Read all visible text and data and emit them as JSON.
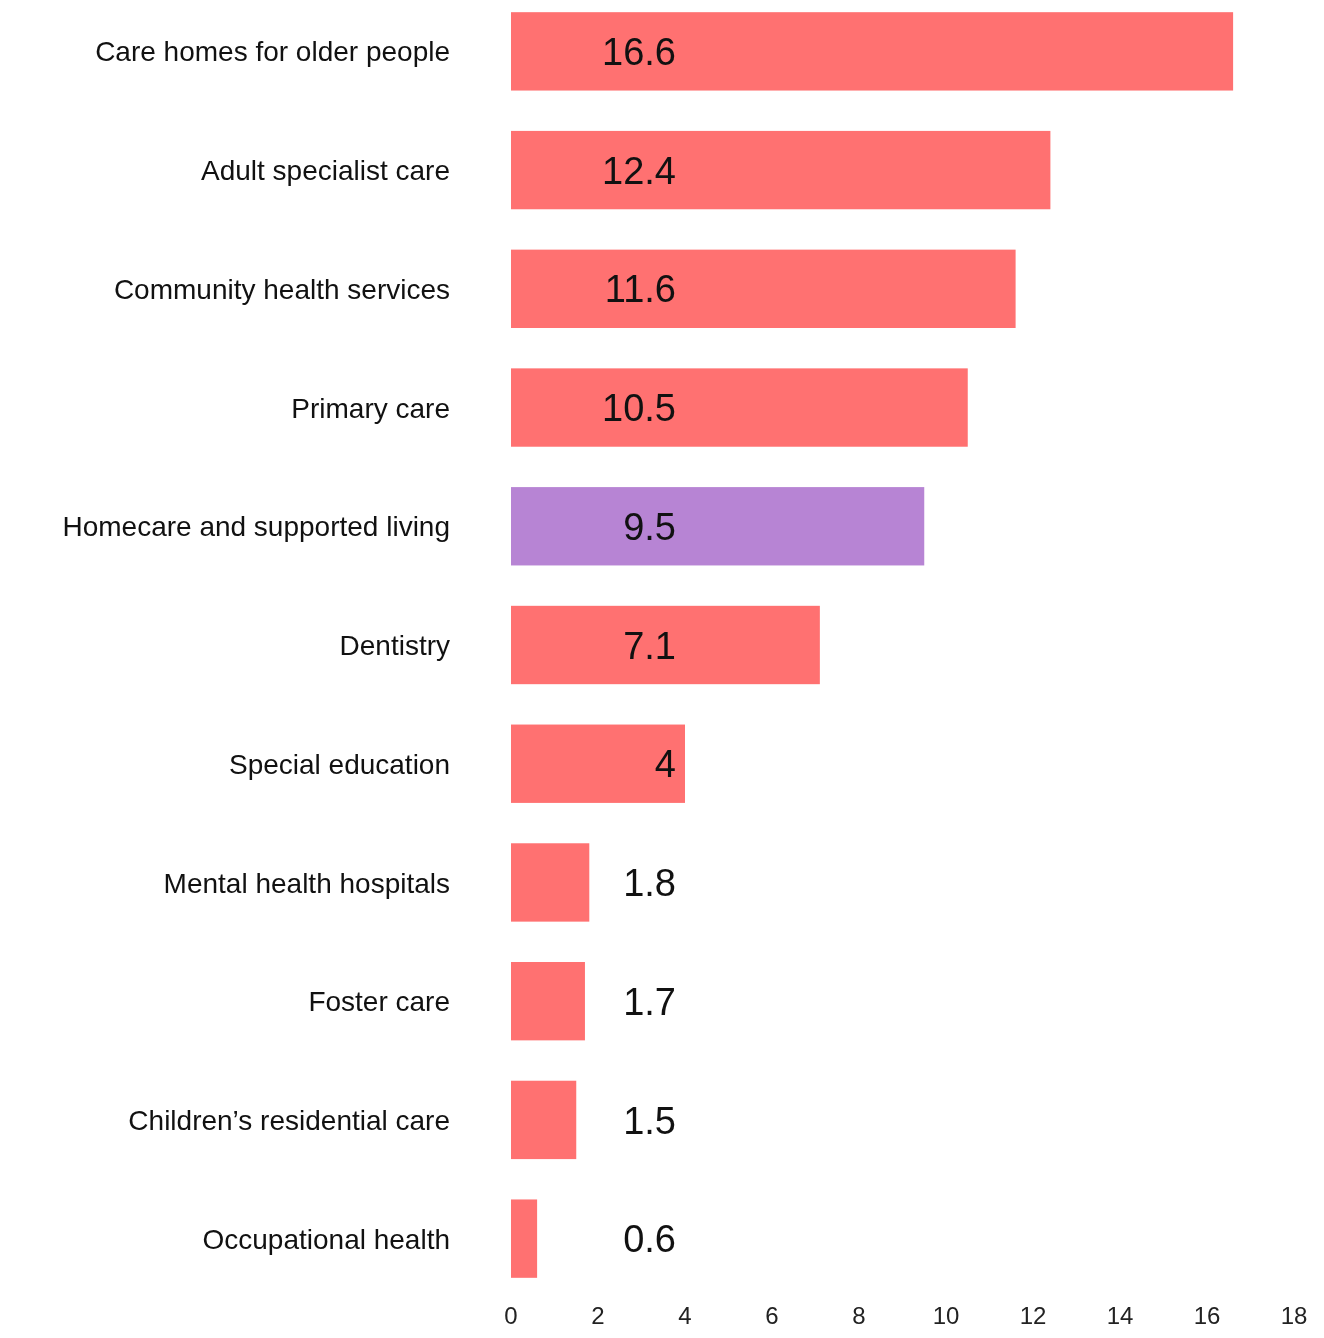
{
  "chart_data": {
    "type": "bar",
    "orientation": "horizontal",
    "categories": [
      "Care homes for older people",
      "Adult specialist care",
      "Community health services",
      "Primary care",
      "Homecare and supported living",
      "Dentistry",
      "Special education",
      "Mental health hospitals",
      "Foster care",
      "Children’s residential care",
      "Occupational health"
    ],
    "values": [
      16.6,
      12.4,
      11.6,
      10.5,
      9.5,
      7.1,
      4,
      1.8,
      1.7,
      1.5,
      0.6
    ],
    "colors": [
      "#ff7171",
      "#ff7171",
      "#ff7171",
      "#ff7171",
      "#b784d4",
      "#ff7171",
      "#ff7171",
      "#ff7171",
      "#ff7171",
      "#ff7171",
      "#ff7171"
    ],
    "xlim": [
      0,
      18
    ],
    "xticks": [
      0,
      2,
      4,
      6,
      8,
      10,
      12,
      14,
      16,
      18
    ],
    "data_labels": true
  }
}
